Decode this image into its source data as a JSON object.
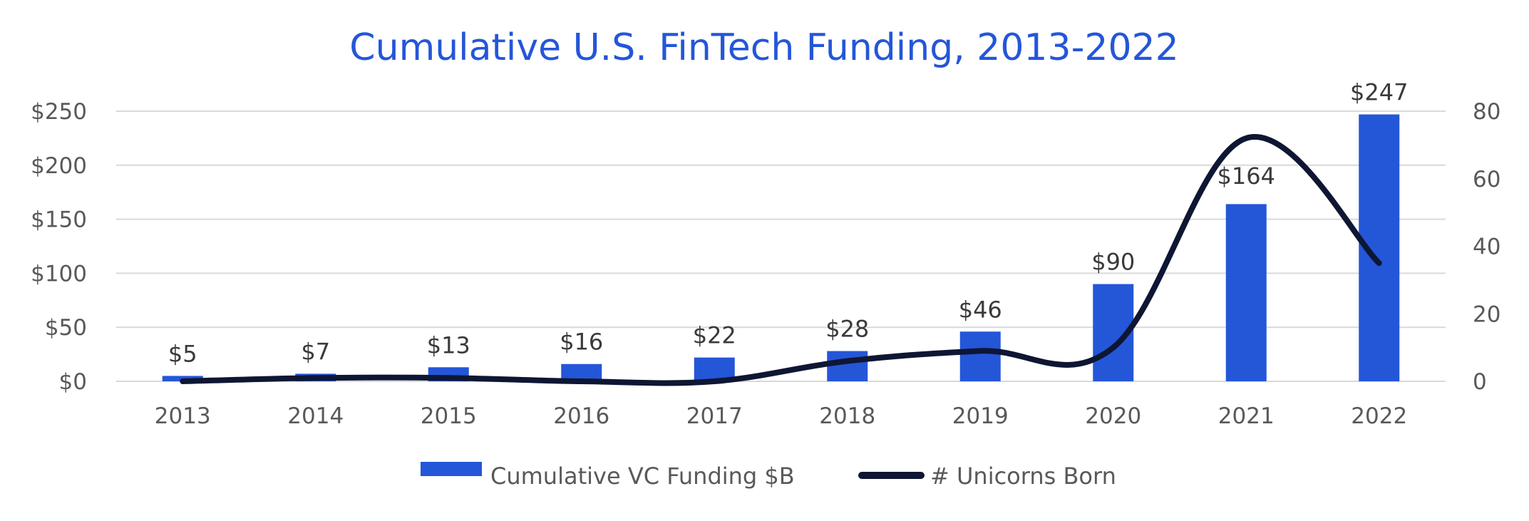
{
  "chart_data": {
    "type": "bar",
    "title": "Cumulative U.S. FinTech Funding, 2013-2022",
    "categories": [
      "2013",
      "2014",
      "2015",
      "2016",
      "2017",
      "2018",
      "2019",
      "2020",
      "2021",
      "2022"
    ],
    "series": [
      {
        "name": "Cumulative VC Funding $B",
        "type": "bar",
        "axis": "left",
        "values": [
          5,
          7,
          13,
          16,
          22,
          28,
          46,
          90,
          164,
          247
        ],
        "labels": [
          "$5",
          "$7",
          "$13",
          "$16",
          "$22",
          "$28",
          "$46",
          "$90",
          "$164",
          "$247"
        ],
        "color": "#2456D8"
      },
      {
        "name": "# Unicorns Born",
        "type": "line",
        "axis": "right",
        "values": [
          0,
          1,
          1,
          0,
          0,
          6,
          9,
          10,
          72,
          35
        ],
        "color": "#0E1633"
      }
    ],
    "ylim": [
      0,
      250
    ],
    "y2lim": [
      0,
      80
    ],
    "y_ticks": [
      "$0",
      "$50",
      "$100",
      "$150",
      "$200",
      "$250"
    ],
    "y_tick_values": [
      0,
      50,
      100,
      150,
      200,
      250
    ],
    "y2_ticks": [
      "0",
      "20",
      "40",
      "60",
      "80"
    ],
    "y2_tick_values": [
      0,
      20,
      40,
      60,
      80
    ],
    "grid": true,
    "legend_position": "bottom",
    "colors": {
      "title": "#2456D8",
      "bar": "#2456D8",
      "line": "#0E1633",
      "grid": "#D9D9D9",
      "axis_text": "#595959",
      "label_text": "#3A3A3A"
    }
  }
}
